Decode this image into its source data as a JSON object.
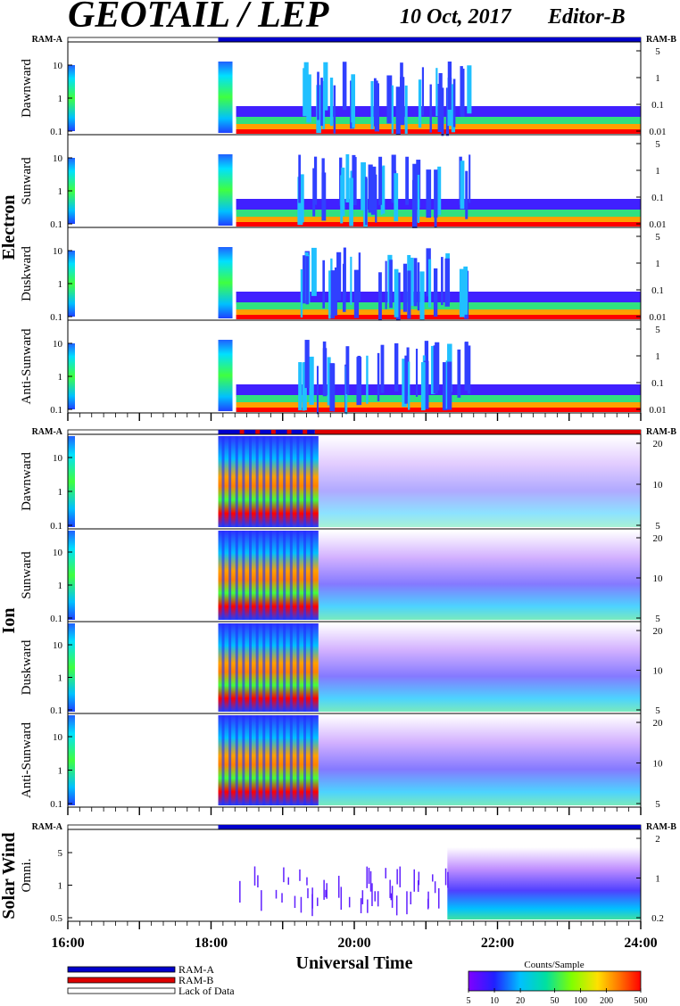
{
  "header": {
    "title": "GEOTAIL / LEP",
    "date": "10 Oct, 2017",
    "editor": "Editor-B"
  },
  "chart_data": {
    "type": "heatmap",
    "x_axis": {
      "label": "Universal Time",
      "range": [
        "16:00",
        "24:00"
      ],
      "tick_labels": [
        "16:00",
        "18:00",
        "20:00",
        "22:00",
        "24:00"
      ]
    },
    "mode_bar": {
      "left_label": "RAM-A",
      "right_label": "RAM-B"
    },
    "groups": [
      {
        "name": "Electron",
        "panels": [
          {
            "label": "Dawnward",
            "left_ticks": [
              "10",
              "1",
              "0.1"
            ],
            "right_ticks": [
              "5",
              "1",
              "0.1",
              "0.01"
            ]
          },
          {
            "label": "Sunward",
            "left_ticks": [
              "10",
              "1",
              "0.1"
            ],
            "right_ticks": [
              "5",
              "1",
              "0.1",
              "0.01"
            ]
          },
          {
            "label": "Duskward",
            "left_ticks": [
              "10",
              "1",
              "0.1"
            ],
            "right_ticks": [
              "5",
              "1",
              "0.1",
              "0.01"
            ]
          },
          {
            "label": "Anti-Sunward",
            "left_ticks": [
              "10",
              "1",
              "0.1"
            ],
            "right_ticks": [
              "5",
              "1",
              "0.1",
              "0.01"
            ]
          }
        ]
      },
      {
        "name": "Ion",
        "panels": [
          {
            "label": "Dawnward",
            "left_ticks": [
              "10",
              "1",
              "0.1"
            ],
            "right_ticks": [
              "20",
              "10",
              "5"
            ]
          },
          {
            "label": "Sunward",
            "left_ticks": [
              "10",
              "1",
              "0.1"
            ],
            "right_ticks": [
              "20",
              "10",
              "5"
            ]
          },
          {
            "label": "Duskward",
            "left_ticks": [
              "10",
              "1",
              "0.1"
            ],
            "right_ticks": [
              "20",
              "10",
              "5"
            ]
          },
          {
            "label": "Anti-Sunward",
            "left_ticks": [
              "10",
              "1",
              "0.1"
            ],
            "right_ticks": [
              "20",
              "10",
              "5"
            ]
          }
        ]
      },
      {
        "name": "Solar Wind",
        "panels": [
          {
            "label": "Omni.",
            "left_ticks": [
              "5",
              "1",
              "0.5"
            ],
            "right_ticks": [
              "2",
              "1",
              "0.2"
            ]
          }
        ]
      }
    ],
    "legend": {
      "items": [
        {
          "label": "RAM-A",
          "color": "#0000cc"
        },
        {
          "label": "RAM-B",
          "color": "#dd0000"
        },
        {
          "label": "Lack of Data",
          "color": "#ffffff"
        }
      ]
    },
    "colorbar": {
      "title": "Counts/Sample",
      "tick_labels": [
        "5",
        "10",
        "20",
        "50",
        "100",
        "200",
        "500"
      ],
      "scale": "log",
      "range": [
        5,
        500
      ]
    }
  }
}
